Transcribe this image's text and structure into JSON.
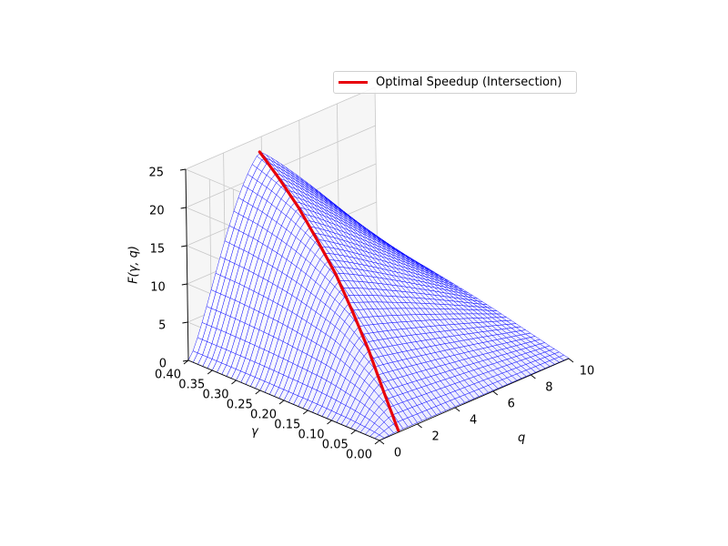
{
  "chart_data": {
    "type": "surface3d",
    "zlabel": "F(γ, q)",
    "xlabel": "q",
    "ylabel": "γ",
    "xlim": [
      0,
      10
    ],
    "ylim": [
      0.0,
      0.4
    ],
    "zlim": [
      0,
      25
    ],
    "x_ticks": [
      "0",
      "2",
      "4",
      "6",
      "8",
      "10"
    ],
    "y_ticks": [
      "0.00",
      "0.05",
      "0.10",
      "0.15",
      "0.20",
      "0.25",
      "0.30",
      "0.35",
      "0.40"
    ],
    "z_ticks": [
      "0",
      "5",
      "10",
      "15",
      "20",
      "25"
    ],
    "grid": true,
    "legend_position": "top-right",
    "series": [
      {
        "name": "Optimal Speedup (Intersection)",
        "color": "#e8000b",
        "points": [
          {
            "gamma": 0.0,
            "q": 1.0,
            "F": 0.2
          },
          {
            "gamma": 0.05,
            "q": 1.5,
            "F": 3.5
          },
          {
            "gamma": 0.1,
            "q": 2.0,
            "F": 7.0
          },
          {
            "gamma": 0.15,
            "q": 2.4,
            "F": 10.5
          },
          {
            "gamma": 0.2,
            "q": 2.8,
            "F": 13.6
          },
          {
            "gamma": 0.25,
            "q": 3.1,
            "F": 16.4
          },
          {
            "gamma": 0.3,
            "q": 3.4,
            "F": 19.0
          },
          {
            "gamma": 0.35,
            "q": 3.65,
            "F": 21.2
          },
          {
            "gamma": 0.4,
            "q": 3.9,
            "F": 23.1
          }
        ]
      }
    ],
    "surface_color": "#0000ff",
    "surface_grid": {
      "gamma_steps": 40,
      "q_steps": 40
    }
  },
  "legend": {
    "label": "Optimal Speedup (Intersection)"
  },
  "colors": {
    "pane": "#f2f2f2",
    "pane_grid": "#c8c8c8",
    "mesh": "#0000ff",
    "curve": "#e8000b"
  }
}
